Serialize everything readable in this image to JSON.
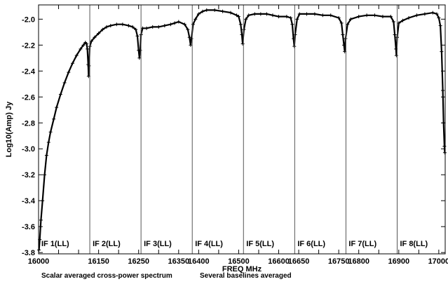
{
  "chart_data": {
    "type": "line",
    "title": "",
    "xlabel": "FREQ MHz",
    "ylabel": "Log10(Amp) Jy",
    "xlim": [
      16000,
      17016
    ],
    "ylim": [
      -3.81,
      -1.89
    ],
    "x_ticks": [
      16000,
      16050,
      16100,
      16150,
      16200,
      16250,
      16300,
      16350,
      16400,
      16450,
      16500,
      16550,
      16600,
      16650,
      16700,
      16750,
      16800,
      16850,
      16900,
      16950,
      17000
    ],
    "x_tick_labels": [
      {
        "value": 16000,
        "text": "16000"
      },
      {
        "value": 16150,
        "text": "16150"
      },
      {
        "value": 16250,
        "text": "16250"
      },
      {
        "value": 16350,
        "text": "16350"
      },
      {
        "value": 16400,
        "text": "16400"
      },
      {
        "value": 16500,
        "text": "16500"
      },
      {
        "value": 16600,
        "text": "16600"
      },
      {
        "value": 16650,
        "text": "16650"
      },
      {
        "value": 16750,
        "text": "16750"
      },
      {
        "value": 16800,
        "text": "16800"
      },
      {
        "value": 16900,
        "text": "16900"
      },
      {
        "value": 17000,
        "text": "17000"
      }
    ],
    "y_ticks": [
      -3.8,
      -3.6,
      -3.4,
      -3.2,
      -3.0,
      -2.8,
      -2.6,
      -2.4,
      -2.2,
      -2.0
    ],
    "y_tick_labels": [
      "-3.8",
      "-3.6",
      "-3.4",
      "-3.2",
      "-3.0",
      "-2.8",
      "-2.6",
      "-2.4",
      "-2.2",
      "-2.0"
    ],
    "if_boundaries": [
      16128,
      16256,
      16384,
      16512,
      16640,
      16768,
      16896
    ],
    "if_labels": [
      {
        "text": "IF 1(LL)",
        "x": 16007
      },
      {
        "text": "IF 2(LL)",
        "x": 16135
      },
      {
        "text": "IF 3(LL)",
        "x": 16263
      },
      {
        "text": "IF 4(LL)",
        "x": 16391
      },
      {
        "text": "IF 5(LL)",
        "x": 16519
      },
      {
        "text": "IF 6(LL)",
        "x": 16647
      },
      {
        "text": "IF 7(LL)",
        "x": 16775
      },
      {
        "text": "IF 8(LL)",
        "x": 16903
      }
    ],
    "series": [
      {
        "marker": "+",
        "color": "#000000",
        "points": [
          [
            16001,
            -3.78
          ],
          [
            16003,
            -3.7
          ],
          [
            16006,
            -3.55
          ],
          [
            16010,
            -3.4
          ],
          [
            16015,
            -3.2
          ],
          [
            16020,
            -3.05
          ],
          [
            16025,
            -2.95
          ],
          [
            16030,
            -2.87
          ],
          [
            16038,
            -2.77
          ],
          [
            16045,
            -2.68
          ],
          [
            16055,
            -2.58
          ],
          [
            16065,
            -2.49
          ],
          [
            16075,
            -2.41
          ],
          [
            16085,
            -2.34
          ],
          [
            16095,
            -2.28
          ],
          [
            16105,
            -2.23
          ],
          [
            16112,
            -2.2
          ],
          [
            16117,
            -2.18
          ],
          [
            16120,
            -2.19
          ],
          [
            16122,
            -2.23
          ],
          [
            16124,
            -2.35
          ],
          [
            16125,
            -2.44
          ],
          [
            16126,
            -2.36
          ],
          [
            16128,
            -2.21
          ],
          [
            16132,
            -2.17
          ],
          [
            16140,
            -2.14
          ],
          [
            16150,
            -2.11
          ],
          [
            16160,
            -2.08
          ],
          [
            16170,
            -2.06
          ],
          [
            16180,
            -2.05
          ],
          [
            16195,
            -2.04
          ],
          [
            16210,
            -2.04
          ],
          [
            16225,
            -2.05
          ],
          [
            16235,
            -2.06
          ],
          [
            16243,
            -2.08
          ],
          [
            16247,
            -2.13
          ],
          [
            16250,
            -2.24
          ],
          [
            16252,
            -2.3
          ],
          [
            16254,
            -2.24
          ],
          [
            16256,
            -2.12
          ],
          [
            16260,
            -2.07
          ],
          [
            16270,
            -2.07
          ],
          [
            16285,
            -2.06
          ],
          [
            16300,
            -2.06
          ],
          [
            16315,
            -2.05
          ],
          [
            16330,
            -2.04
          ],
          [
            16340,
            -2.03
          ],
          [
            16350,
            -2.02
          ],
          [
            16365,
            -2.04
          ],
          [
            16373,
            -2.08
          ],
          [
            16377,
            -2.14
          ],
          [
            16380,
            -2.2
          ],
          [
            16382,
            -2.15
          ],
          [
            16386,
            -2.04
          ],
          [
            16392,
            -2.0
          ],
          [
            16400,
            -1.96
          ],
          [
            16410,
            -1.94
          ],
          [
            16420,
            -1.93
          ],
          [
            16440,
            -1.93
          ],
          [
            16460,
            -1.94
          ],
          [
            16480,
            -1.95
          ],
          [
            16495,
            -1.97
          ],
          [
            16500,
            -1.98
          ],
          [
            16505,
            -2.04
          ],
          [
            16508,
            -2.12
          ],
          [
            16510,
            -2.19
          ],
          [
            16513,
            -2.08
          ],
          [
            16518,
            -2.0
          ],
          [
            16525,
            -1.97
          ],
          [
            16540,
            -1.96
          ],
          [
            16555,
            -1.96
          ],
          [
            16570,
            -1.96
          ],
          [
            16585,
            -1.97
          ],
          [
            16600,
            -1.98
          ],
          [
            16620,
            -1.98
          ],
          [
            16630,
            -1.99
          ],
          [
            16634,
            -2.04
          ],
          [
            16637,
            -2.15
          ],
          [
            16639,
            -2.21
          ],
          [
            16641,
            -2.12
          ],
          [
            16646,
            -2.0
          ],
          [
            16652,
            -1.96
          ],
          [
            16670,
            -1.96
          ],
          [
            16690,
            -1.96
          ],
          [
            16710,
            -1.97
          ],
          [
            16730,
            -1.97
          ],
          [
            16750,
            -1.99
          ],
          [
            16757,
            -2.03
          ],
          [
            16760,
            -2.12
          ],
          [
            16763,
            -2.2
          ],
          [
            16765,
            -2.25
          ],
          [
            16767,
            -2.15
          ],
          [
            16772,
            -2.04
          ],
          [
            16780,
            -2.0
          ],
          [
            16800,
            -1.98
          ],
          [
            16820,
            -1.97
          ],
          [
            16840,
            -1.97
          ],
          [
            16860,
            -1.98
          ],
          [
            16880,
            -1.98
          ],
          [
            16887,
            -2.02
          ],
          [
            16890,
            -2.12
          ],
          [
            16893,
            -2.23
          ],
          [
            16894,
            -2.28
          ],
          [
            16896,
            -2.14
          ],
          [
            16900,
            -2.03
          ],
          [
            16910,
            -2.01
          ],
          [
            16925,
            -1.99
          ],
          [
            16945,
            -1.97
          ],
          [
            16965,
            -1.96
          ],
          [
            16985,
            -1.95
          ],
          [
            16995,
            -1.96
          ],
          [
            17000,
            -1.99
          ],
          [
            17004,
            -2.05
          ],
          [
            17007,
            -2.25
          ],
          [
            17010,
            -2.55
          ],
          [
            17012,
            -2.8
          ],
          [
            17014,
            -2.98
          ],
          [
            17015,
            -3.03
          ]
        ]
      }
    ],
    "grid": false,
    "legend": "none"
  },
  "captions": {
    "left": "Scalar averaged cross-power spectrum",
    "right": "Several baselines averaged"
  }
}
